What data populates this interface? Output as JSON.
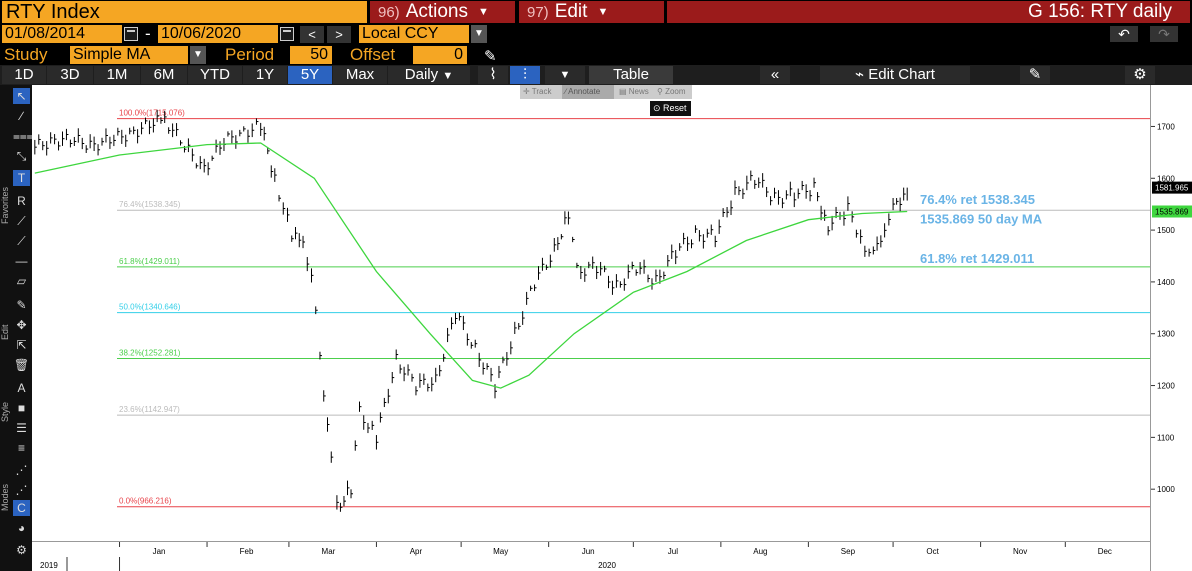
{
  "header": {
    "ticker": "RTY Index",
    "actions_num": "96)",
    "actions_label": "Actions",
    "edit_num": "97)",
    "edit_label": "Edit",
    "graph_title": "G 156: RTY daily"
  },
  "dates": {
    "start": "01/08/2014",
    "separator": "-",
    "end": "10/06/2020",
    "prev_icon": "<",
    "next_icon": ">",
    "currency": "Local CCY"
  },
  "study": {
    "label": "Study",
    "value": "Simple MA",
    "period_label": "Period",
    "period_value": "50",
    "offset_label": "Offset",
    "offset_value": "0"
  },
  "toolbar": {
    "ranges": [
      "1D",
      "3D",
      "1M",
      "6M",
      "YTD",
      "1Y",
      "5Y",
      "Max"
    ],
    "active_range": "5Y",
    "frequency": "Daily",
    "table_label": "Table",
    "edit_chart_label": "Edit Chart",
    "undo_icon": "↶",
    "redo_icon": "↷"
  },
  "mini_toolbar": {
    "track": "Track",
    "annotate": "Annotate",
    "news": "News",
    "zoom": "Zoom",
    "reset": "Reset"
  },
  "rail": {
    "favorites_label": "Favorites",
    "edit_label": "Edit",
    "style_label": "Style",
    "modes_label": "Modes"
  },
  "chart_data": {
    "type": "ohlc",
    "series": [
      {
        "name": "RTY daily",
        "color": "#000000",
        "points": [
          {
            "x": "2019-12-02",
            "y": 1660
          },
          {
            "x": "2019-12-09",
            "y": 1675
          },
          {
            "x": "2019-12-16",
            "y": 1672
          },
          {
            "x": "2019-12-23",
            "y": 1665
          },
          {
            "x": "2019-12-30",
            "y": 1675
          },
          {
            "x": "2020-01-06",
            "y": 1690
          },
          {
            "x": "2020-01-13",
            "y": 1705
          },
          {
            "x": "2020-01-17",
            "y": 1715
          },
          {
            "x": "2020-01-24",
            "y": 1660
          },
          {
            "x": "2020-01-31",
            "y": 1620
          },
          {
            "x": "2020-02-07",
            "y": 1670
          },
          {
            "x": "2020-02-14",
            "y": 1690
          },
          {
            "x": "2020-02-20",
            "y": 1700
          },
          {
            "x": "2020-02-25",
            "y": 1600
          },
          {
            "x": "2020-03-02",
            "y": 1490
          },
          {
            "x": "2020-03-06",
            "y": 1470
          },
          {
            "x": "2020-03-09",
            "y": 1420
          },
          {
            "x": "2020-03-12",
            "y": 1250
          },
          {
            "x": "2020-03-16",
            "y": 1070
          },
          {
            "x": "2020-03-18",
            "y": 966
          },
          {
            "x": "2020-03-23",
            "y": 1000
          },
          {
            "x": "2020-03-26",
            "y": 1150
          },
          {
            "x": "2020-04-01",
            "y": 1100
          },
          {
            "x": "2020-04-08",
            "y": 1250
          },
          {
            "x": "2020-04-15",
            "y": 1200
          },
          {
            "x": "2020-04-22",
            "y": 1210
          },
          {
            "x": "2020-04-29",
            "y": 1340
          },
          {
            "x": "2020-05-06",
            "y": 1270
          },
          {
            "x": "2020-05-13",
            "y": 1200
          },
          {
            "x": "2020-05-20",
            "y": 1300
          },
          {
            "x": "2020-05-27",
            "y": 1400
          },
          {
            "x": "2020-06-03",
            "y": 1460
          },
          {
            "x": "2020-06-08",
            "y": 1535
          },
          {
            "x": "2020-06-11",
            "y": 1420
          },
          {
            "x": "2020-06-18",
            "y": 1430
          },
          {
            "x": "2020-06-25",
            "y": 1390
          },
          {
            "x": "2020-07-02",
            "y": 1430
          },
          {
            "x": "2020-07-09",
            "y": 1400
          },
          {
            "x": "2020-07-16",
            "y": 1460
          },
          {
            "x": "2020-07-23",
            "y": 1490
          },
          {
            "x": "2020-07-30",
            "y": 1490
          },
          {
            "x": "2020-08-06",
            "y": 1570
          },
          {
            "x": "2020-08-13",
            "y": 1600
          },
          {
            "x": "2020-08-20",
            "y": 1560
          },
          {
            "x": "2020-08-27",
            "y": 1570
          },
          {
            "x": "2020-09-03",
            "y": 1580
          },
          {
            "x": "2020-09-08",
            "y": 1510
          },
          {
            "x": "2020-09-15",
            "y": 1540
          },
          {
            "x": "2020-09-21",
            "y": 1470
          },
          {
            "x": "2020-09-24",
            "y": 1450
          },
          {
            "x": "2020-09-28",
            "y": 1510
          },
          {
            "x": "2020-10-01",
            "y": 1540
          },
          {
            "x": "2020-10-06",
            "y": 1581.965
          }
        ]
      },
      {
        "name": "50 day MA",
        "color": "#3ed63e",
        "points": [
          {
            "x": "2019-12-02",
            "y": 1610
          },
          {
            "x": "2020-01-01",
            "y": 1645
          },
          {
            "x": "2020-02-01",
            "y": 1665
          },
          {
            "x": "2020-02-20",
            "y": 1668
          },
          {
            "x": "2020-03-10",
            "y": 1600
          },
          {
            "x": "2020-04-01",
            "y": 1420
          },
          {
            "x": "2020-04-20",
            "y": 1300
          },
          {
            "x": "2020-05-05",
            "y": 1210
          },
          {
            "x": "2020-05-15",
            "y": 1195
          },
          {
            "x": "2020-05-25",
            "y": 1220
          },
          {
            "x": "2020-06-10",
            "y": 1300
          },
          {
            "x": "2020-07-01",
            "y": 1380
          },
          {
            "x": "2020-07-20",
            "y": 1420
          },
          {
            "x": "2020-08-10",
            "y": 1480
          },
          {
            "x": "2020-09-01",
            "y": 1520
          },
          {
            "x": "2020-09-20",
            "y": 1532
          },
          {
            "x": "2020-10-06",
            "y": 1535.869
          }
        ]
      }
    ],
    "fib_levels": [
      {
        "label": "100.0%(1715.076)",
        "value": 1715.076,
        "color": "#e8434a"
      },
      {
        "label": "76.4%(1538.345)",
        "value": 1538.345,
        "color": "#bbbbbb"
      },
      {
        "label": "61.8%(1429.011)",
        "value": 1429.011,
        "color": "#4ccf4c"
      },
      {
        "label": "50.0%(1340.646)",
        "value": 1340.646,
        "color": "#33cfe8"
      },
      {
        "label": "38.2%(1252.281)",
        "value": 1252.281,
        "color": "#4ccf4c"
      },
      {
        "label": "23.6%(1142.947)",
        "value": 1142.947,
        "color": "#bbbbbb"
      },
      {
        "label": "0.0%(966.216)",
        "value": 966.216,
        "color": "#e8434a"
      }
    ],
    "annotations": [
      {
        "text": "76.4% ret 1538.345",
        "color": "#6ab4e6"
      },
      {
        "text": "1535.869 50 day MA",
        "color": "#6ab4e6"
      },
      {
        "text": "61.8% ret 1429.011",
        "color": "#6ab4e6"
      }
    ],
    "last_price_tags": [
      {
        "text": "1581.965",
        "value": 1581.965,
        "bg": "#000000",
        "color": "#ffffff"
      },
      {
        "text": "1535.869",
        "value": 1535.869,
        "bg": "#3ed63e",
        "color": "#000000"
      }
    ],
    "y_ticks": [
      1000,
      1100,
      1200,
      1300,
      1400,
      1500,
      1600,
      1700
    ],
    "x_ticks": [
      "Jan",
      "Feb",
      "Mar",
      "Apr",
      "May",
      "Jun",
      "Jul",
      "Aug",
      "Sep",
      "Oct",
      "Nov",
      "Dec"
    ],
    "x_years": [
      "2019",
      "2020"
    ],
    "ylim": [
      900,
      1780
    ],
    "xlim": [
      "2019-12-01",
      "2020-12-31"
    ],
    "grid": false
  }
}
